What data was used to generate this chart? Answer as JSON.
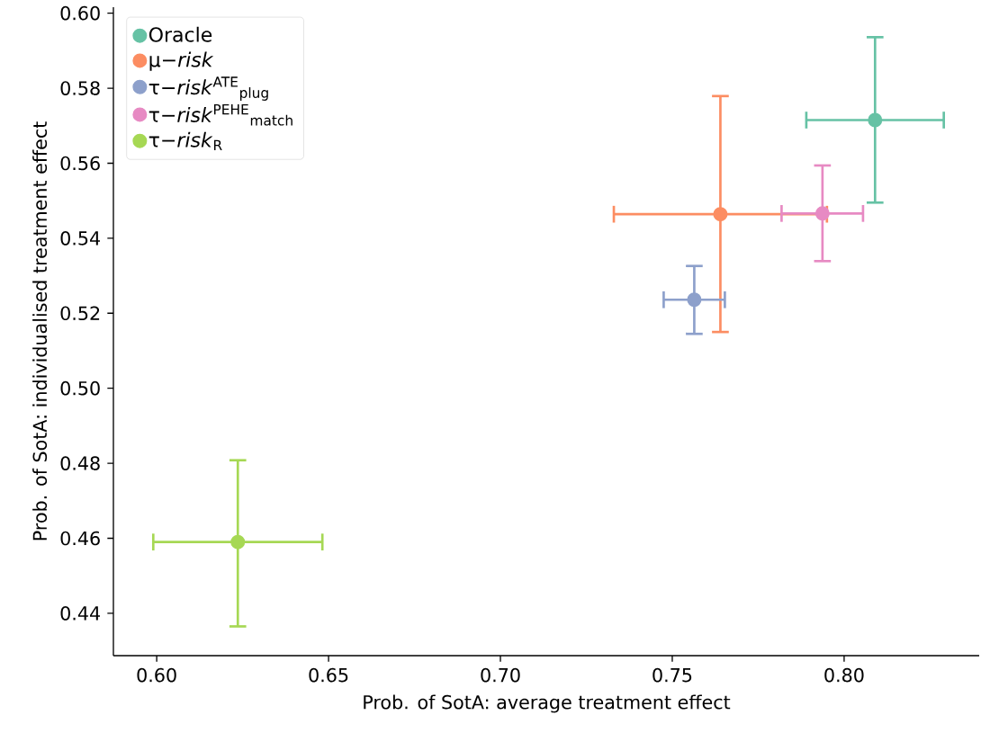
{
  "chart_data": {
    "type": "scatter",
    "xlabel": "Prob. of SotA: average treatment effect",
    "ylabel": "Prob. of SotA: individualised treatment effect",
    "xlim": [
      0.5874,
      0.8393
    ],
    "ylim": [
      0.4287,
      0.6016
    ],
    "xticks": [
      {
        "value": 0.6,
        "label": "0.60"
      },
      {
        "value": 0.65,
        "label": "0.65"
      },
      {
        "value": 0.7,
        "label": "0.70"
      },
      {
        "value": 0.75,
        "label": "0.75"
      },
      {
        "value": 0.8,
        "label": "0.80"
      }
    ],
    "yticks": [
      {
        "value": 0.44,
        "label": "0.44"
      },
      {
        "value": 0.46,
        "label": "0.46"
      },
      {
        "value": 0.48,
        "label": "0.48"
      },
      {
        "value": 0.5,
        "label": "0.50"
      },
      {
        "value": 0.52,
        "label": "0.52"
      },
      {
        "value": 0.54,
        "label": "0.54"
      },
      {
        "value": 0.56,
        "label": "0.56"
      },
      {
        "value": 0.58,
        "label": "0.58"
      },
      {
        "value": 0.6,
        "label": "0.60"
      }
    ],
    "marker": "circle",
    "legend": "top left",
    "series": [
      {
        "name": "Oracle",
        "color": "#66c2a5",
        "x": [
          0.809
        ],
        "values": [
          0.5715
        ],
        "xerrors": [
          [
            0.789,
            0.829
          ]
        ],
        "errors": [
          [
            0.5495,
            0.5936
          ]
        ]
      },
      {
        "name": "μ−*risk*",
        "color": "#fc8d62",
        "x": [
          0.764
        ],
        "values": [
          0.5464
        ],
        "xerrors": [
          [
            0.733,
            0.795
          ]
        ],
        "errors": [
          [
            0.515,
            0.5779
          ]
        ]
      },
      {
        "name": "τ−*risk*$^{ATE}$$_{plug}$",
        "color": "#8da0cb",
        "x": [
          0.7564
        ],
        "values": [
          0.5236
        ],
        "xerrors": [
          [
            0.7475,
            0.7653
          ]
        ],
        "errors": [
          [
            0.5145,
            0.5326
          ]
        ]
      },
      {
        "name": "τ−*risk*$^{PEHE}$$_{match}$",
        "color": "#e78ac3",
        "x": [
          0.7937
        ],
        "values": [
          0.5466
        ],
        "xerrors": [
          [
            0.7818,
            0.8055
          ]
        ],
        "errors": [
          [
            0.5339,
            0.5594
          ]
        ]
      },
      {
        "name": "τ−*risk*$_{R}$",
        "color": "#a6d854",
        "x": [
          0.6236
        ],
        "values": [
          0.459
        ],
        "xerrors": [
          [
            0.599,
            0.6482
          ]
        ],
        "errors": [
          [
            0.4365,
            0.4808
          ]
        ]
      }
    ]
  }
}
